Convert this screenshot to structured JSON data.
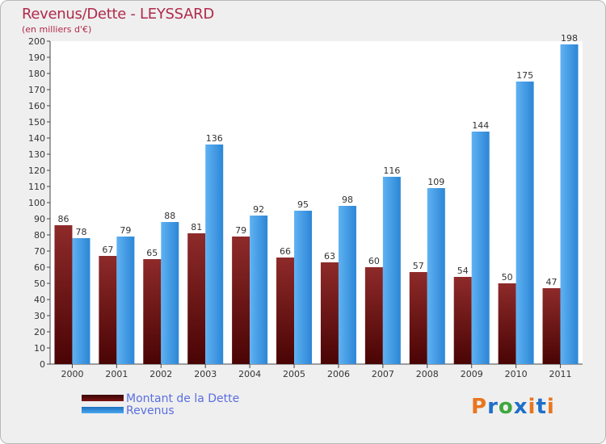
{
  "title": "Revenus/Dette - LEYSSARD",
  "subtitle": "(en milliers d'€)",
  "chart_data": {
    "type": "bar",
    "title": "Revenus/Dette - LEYSSARD",
    "subtitle": "(en milliers d'€)",
    "categories": [
      "2000",
      "2001",
      "2002",
      "2003",
      "2004",
      "2005",
      "2006",
      "2007",
      "2008",
      "2009",
      "2010",
      "2011"
    ],
    "series": [
      {
        "name": "Montant de la Dette",
        "color": "#8a1a1a",
        "values": [
          86,
          67,
          65,
          81,
          79,
          66,
          63,
          60,
          57,
          54,
          50,
          47
        ]
      },
      {
        "name": "Revenus",
        "color": "#3d9be6",
        "values": [
          78,
          79,
          88,
          136,
          92,
          95,
          98,
          116,
          109,
          144,
          175,
          198
        ]
      }
    ],
    "ylim": [
      0,
      200
    ],
    "ytick_step": 10,
    "ytick_labels": [
      "0",
      "10",
      "20",
      "30",
      "40",
      "50",
      "60",
      "70",
      "80",
      "90",
      "100",
      "110",
      "120",
      "130",
      "140",
      "150",
      "160",
      "170",
      "180",
      "190",
      "200"
    ],
    "grid": false,
    "legend_position": "bottom-left"
  },
  "legend": [
    {
      "label": "Montant de la Dette",
      "color": "#6e0c0c"
    },
    {
      "label": "Revenus",
      "color": "#3d9be6"
    }
  ],
  "logo": {
    "text": "Proxiti",
    "letters": [
      "P",
      "r",
      "o",
      "x",
      "i",
      "t",
      "i"
    ],
    "colors": [
      "#e8761e",
      "#1e6fc8",
      "#3da83d",
      "#1e6fc8",
      "#e8761e",
      "#1e6fc8",
      "#e8761e"
    ]
  }
}
